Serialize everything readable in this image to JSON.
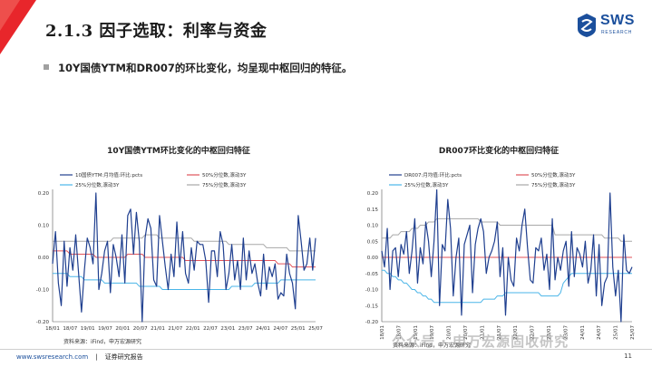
{
  "header": {
    "title": "2.1.3 因子选取：利率与资金",
    "logo_text": "SWS",
    "logo_sub": "RESEARCH",
    "accent": "#e8262b",
    "brand_color": "#1b4f9c"
  },
  "bullet": "10Y国债YTM和DR007的环比变化，均呈现中枢回归的特征。",
  "chart_data": [
    {
      "type": "line",
      "title": "10Y国债YTM环比变化的中枢回归特征",
      "x_ticks": [
        "18/01",
        "18/07",
        "19/01",
        "19/07",
        "20/01",
        "20/07",
        "21/01",
        "21/07",
        "22/01",
        "22/07",
        "23/01",
        "23/07",
        "24/01",
        "24/07",
        "25/01",
        "25/07"
      ],
      "x_range": [
        0,
        91
      ],
      "ylim": [
        -0.2,
        0.2
      ],
      "y_ticks": [
        "0.20",
        "0.10",
        "0.00",
        "-0.10",
        "-0.20"
      ],
      "series": [
        {
          "name": "10国债YTM:月均值:环比:pcts",
          "color": "#1f3f8f",
          "width": 1.2,
          "values": [
            -0.02,
            0.08,
            -0.08,
            -0.15,
            0.05,
            -0.09,
            0.03,
            -0.04,
            0.07,
            -0.05,
            -0.17,
            -0.04,
            0.06,
            0.03,
            -0.02,
            0.2,
            -0.1,
            -0.05,
            0.02,
            0.05,
            -0.11,
            0.04,
            0.0,
            -0.06,
            0.07,
            -0.08,
            0.13,
            0.15,
            0.01,
            0.14,
            0.05,
            -0.2,
            0.06,
            0.12,
            0.09,
            -0.07,
            -0.09,
            0.13,
            0.05,
            -0.03,
            -0.1,
            0.01,
            -0.06,
            0.11,
            -0.03,
            0.08,
            -0.05,
            -0.08,
            0.03,
            -0.04,
            0.05,
            0.04,
            0.04,
            -0.01,
            -0.14,
            0.02,
            0.02,
            -0.06,
            0.08,
            0.04,
            -0.1,
            -0.05,
            0.04,
            -0.07,
            -0.01,
            -0.1,
            0.06,
            -0.07,
            0.02,
            -0.05,
            -0.02,
            -0.08,
            -0.12,
            0.01,
            -0.1,
            -0.03,
            -0.06,
            -0.02,
            -0.13,
            -0.11,
            -0.12,
            0.01,
            -0.05,
            -0.08,
            -0.16,
            0.13,
            0.05,
            -0.04,
            -0.02,
            0.06,
            -0.04,
            0.06
          ]
        },
        {
          "name": "50%分位数,滚动3Y",
          "color": "#e0525a",
          "width": 1.0,
          "values": [
            0.02,
            0.02,
            0.02,
            0.02,
            0.02,
            0.02,
            0.01,
            0.01,
            0.01,
            0.01,
            0.01,
            0.01,
            0.01,
            0.01,
            0.01,
            0.0,
            0.0,
            0.0,
            0.0,
            0.0,
            0.0,
            0.0,
            0.0,
            0.0,
            0.0,
            0.0,
            0.01,
            0.01,
            0.01,
            0.01,
            0.01,
            0.01,
            0.0,
            0.0,
            0.0,
            0.0,
            0.0,
            0.0,
            0.0,
            0.0,
            0.0,
            0.0,
            0.0,
            0.0,
            0.0,
            0.0,
            -0.01,
            -0.01,
            -0.01,
            -0.01,
            -0.01,
            -0.01,
            -0.01,
            -0.01,
            -0.01,
            -0.01,
            -0.01,
            -0.01,
            -0.01,
            -0.01,
            -0.01,
            -0.01,
            -0.01,
            -0.01,
            -0.01,
            -0.01,
            -0.01,
            -0.01,
            -0.01,
            -0.01,
            -0.01,
            -0.01,
            -0.01,
            -0.01,
            -0.01,
            -0.01,
            -0.01,
            -0.01,
            -0.02,
            -0.02,
            -0.02,
            -0.02,
            -0.02,
            -0.03,
            -0.03,
            -0.03,
            -0.03,
            -0.03,
            -0.03,
            -0.03,
            -0.03,
            -0.03
          ]
        },
        {
          "name": "25%分位数,滚动3Y",
          "color": "#4ab5e8",
          "width": 1.0,
          "values": [
            -0.05,
            -0.05,
            -0.05,
            -0.05,
            -0.05,
            -0.05,
            -0.06,
            -0.06,
            -0.06,
            -0.06,
            -0.06,
            -0.07,
            -0.07,
            -0.07,
            -0.07,
            -0.07,
            -0.07,
            -0.07,
            -0.08,
            -0.08,
            -0.08,
            -0.08,
            -0.08,
            -0.08,
            -0.08,
            -0.08,
            -0.08,
            -0.08,
            -0.08,
            -0.08,
            -0.09,
            -0.09,
            -0.09,
            -0.09,
            -0.09,
            -0.09,
            -0.09,
            -0.09,
            -0.1,
            -0.1,
            -0.1,
            -0.1,
            -0.1,
            -0.1,
            -0.1,
            -0.1,
            -0.1,
            -0.1,
            -0.1,
            -0.1,
            -0.1,
            -0.1,
            -0.1,
            -0.1,
            -0.1,
            -0.1,
            -0.1,
            -0.1,
            -0.1,
            -0.1,
            -0.1,
            -0.1,
            -0.09,
            -0.09,
            -0.09,
            -0.09,
            -0.09,
            -0.09,
            -0.09,
            -0.09,
            -0.08,
            -0.08,
            -0.08,
            -0.08,
            -0.08,
            -0.08,
            -0.08,
            -0.08,
            -0.08,
            -0.07,
            -0.07,
            -0.07,
            -0.07,
            -0.07,
            -0.07,
            -0.07,
            -0.07,
            -0.07,
            -0.07,
            -0.07,
            -0.07,
            -0.07
          ]
        },
        {
          "name": "75%分位数,滚动3Y",
          "color": "#a8a8a8",
          "width": 1.0,
          "values": [
            0.05,
            0.05,
            0.05,
            0.05,
            0.05,
            0.05,
            0.05,
            0.05,
            0.05,
            0.05,
            0.05,
            0.05,
            0.05,
            0.05,
            0.05,
            0.05,
            0.05,
            0.05,
            0.05,
            0.05,
            0.05,
            0.06,
            0.06,
            0.06,
            0.06,
            0.06,
            0.06,
            0.06,
            0.06,
            0.06,
            0.06,
            0.06,
            0.07,
            0.07,
            0.07,
            0.07,
            0.07,
            0.06,
            0.06,
            0.06,
            0.06,
            0.06,
            0.06,
            0.06,
            0.06,
            0.06,
            0.06,
            0.06,
            0.06,
            0.05,
            0.05,
            0.05,
            0.05,
            0.05,
            0.05,
            0.05,
            0.05,
            0.05,
            0.05,
            0.05,
            0.05,
            0.04,
            0.04,
            0.04,
            0.04,
            0.04,
            0.04,
            0.04,
            0.04,
            0.04,
            0.04,
            0.04,
            0.04,
            0.04,
            0.03,
            0.03,
            0.03,
            0.03,
            0.03,
            0.03,
            0.03,
            0.03,
            0.02,
            0.02,
            0.02,
            0.02,
            0.02,
            0.02,
            0.02,
            0.02,
            0.02,
            0.02
          ]
        }
      ],
      "source": "资料来源：iFind，申万宏源研究"
    },
    {
      "type": "line",
      "title": "DR007环比变化的中枢回归特征",
      "x_ticks": [
        "18/01",
        "18/07",
        "19/01",
        "19/07",
        "20/01",
        "20/07",
        "21/01",
        "21/07",
        "22/01",
        "22/07",
        "23/01",
        "23/07",
        "24/01",
        "24/07",
        "25/01",
        "25/07"
      ],
      "x_range": [
        0,
        91
      ],
      "ylim": [
        -0.2,
        0.2
      ],
      "y_ticks": [
        "0.20",
        "0.15",
        "0.10",
        "0.05",
        "0.00",
        "-0.05",
        "-0.10",
        "-0.15",
        "-0.20"
      ],
      "series": [
        {
          "name": "DR007:月均值:环比:pcts",
          "color": "#1f3f8f",
          "width": 1.2,
          "values": [
            0.02,
            -0.03,
            0.09,
            -0.1,
            0.02,
            0.03,
            -0.06,
            0.04,
            0.01,
            0.08,
            -0.05,
            0.02,
            0.12,
            -0.08,
            0.03,
            -0.02,
            0.11,
            0.05,
            -0.06,
            0.05,
            0.21,
            -0.15,
            0.04,
            0.02,
            0.18,
            0.09,
            -0.12,
            0.0,
            0.06,
            -0.18,
            0.04,
            0.07,
            0.1,
            -0.11,
            0.04,
            0.09,
            0.12,
            0.08,
            -0.05,
            0.0,
            0.02,
            0.05,
            0.11,
            -0.06,
            0.03,
            -0.18,
            0.0,
            -0.07,
            -0.09,
            0.06,
            0.02,
            0.1,
            0.15,
            0.03,
            -0.07,
            -0.08,
            0.03,
            0.02,
            0.06,
            -0.04,
            0.01,
            -0.1,
            0.12,
            -0.07,
            0.0,
            -0.04,
            0.02,
            0.05,
            -0.09,
            0.08,
            -0.06,
            0.03,
            0.01,
            -0.03,
            0.05,
            -0.08,
            -0.04,
            0.07,
            -0.12,
            0.04,
            -0.15,
            -0.08,
            -0.06,
            0.2,
            -0.03,
            -0.12,
            -0.04,
            -0.2,
            0.07,
            -0.04,
            -0.05,
            -0.03
          ]
        },
        {
          "name": "50%分位数,滚动3Y",
          "color": "#e0525a",
          "width": 1.0,
          "values": [
            0.0,
            0.0,
            0.0,
            0.0,
            0.0,
            0.0,
            0.0,
            0.0,
            0.0,
            0.0,
            0.0,
            0.0,
            0.0,
            0.0,
            0.0,
            0.0,
            0.0,
            0.0,
            0.0,
            0.0,
            0.0,
            0.0,
            0.0,
            0.0,
            0.0,
            0.0,
            0.0,
            0.0,
            0.0,
            0.0,
            0.0,
            0.0,
            0.0,
            0.0,
            0.0,
            0.0,
            0.0,
            0.0,
            0.0,
            0.0,
            0.0,
            0.0,
            0.0,
            0.0,
            0.0,
            0.0,
            0.0,
            0.0,
            0.0,
            0.0,
            0.0,
            0.0,
            0.0,
            0.0,
            0.0,
            0.0,
            0.0,
            0.0,
            0.0,
            0.0,
            0.0,
            0.0,
            0.0,
            0.0,
            0.0,
            0.0,
            0.0,
            0.0,
            0.0,
            0.0,
            0.0,
            0.0,
            0.0,
            0.0,
            0.0,
            0.0,
            0.0,
            0.0,
            0.0,
            0.0,
            0.0,
            0.0,
            0.0,
            0.0,
            0.0,
            0.0,
            0.0,
            0.0,
            0.0,
            0.0,
            0.0,
            0.0
          ]
        },
        {
          "name": "25%分位数,滚动3Y",
          "color": "#4ab5e8",
          "width": 1.0,
          "values": [
            -0.04,
            -0.04,
            -0.05,
            -0.05,
            -0.06,
            -0.06,
            -0.07,
            -0.07,
            -0.08,
            -0.08,
            -0.09,
            -0.1,
            -0.1,
            -0.11,
            -0.11,
            -0.12,
            -0.12,
            -0.13,
            -0.13,
            -0.14,
            -0.14,
            -0.14,
            -0.14,
            -0.14,
            -0.14,
            -0.14,
            -0.14,
            -0.14,
            -0.14,
            -0.14,
            -0.14,
            -0.14,
            -0.14,
            -0.14,
            -0.14,
            -0.14,
            -0.14,
            -0.13,
            -0.13,
            -0.13,
            -0.13,
            -0.13,
            -0.12,
            -0.12,
            -0.12,
            -0.11,
            -0.11,
            -0.11,
            -0.11,
            -0.11,
            -0.11,
            -0.11,
            -0.11,
            -0.11,
            -0.11,
            -0.11,
            -0.11,
            -0.11,
            -0.12,
            -0.12,
            -0.12,
            -0.12,
            -0.12,
            -0.12,
            -0.12,
            -0.11,
            -0.08,
            -0.07,
            -0.06,
            -0.05,
            -0.05,
            -0.05,
            -0.05,
            -0.05,
            -0.05,
            -0.05,
            -0.05,
            -0.05,
            -0.05,
            -0.05,
            -0.05,
            -0.05,
            -0.05,
            -0.05,
            -0.05,
            -0.05,
            -0.05,
            -0.05,
            -0.05,
            -0.05,
            -0.05,
            -0.05
          ]
        },
        {
          "name": "75%分位数,滚动3Y",
          "color": "#a8a8a8",
          "width": 1.0,
          "values": [
            0.06,
            0.06,
            0.06,
            0.06,
            0.07,
            0.07,
            0.07,
            0.08,
            0.08,
            0.08,
            0.08,
            0.09,
            0.09,
            0.09,
            0.1,
            0.1,
            0.1,
            0.11,
            0.11,
            0.11,
            0.12,
            0.12,
            0.12,
            0.12,
            0.12,
            0.12,
            0.12,
            0.12,
            0.12,
            0.12,
            0.12,
            0.12,
            0.12,
            0.12,
            0.12,
            0.12,
            0.11,
            0.11,
            0.11,
            0.11,
            0.11,
            0.11,
            0.11,
            0.1,
            0.1,
            0.1,
            0.1,
            0.1,
            0.1,
            0.1,
            0.1,
            0.1,
            0.1,
            0.1,
            0.1,
            0.1,
            0.1,
            0.1,
            0.1,
            0.1,
            0.1,
            0.1,
            0.1,
            0.07,
            0.07,
            0.07,
            0.07,
            0.07,
            0.07,
            0.07,
            0.07,
            0.07,
            0.07,
            0.07,
            0.07,
            0.07,
            0.07,
            0.07,
            0.07,
            0.07,
            0.07,
            0.06,
            0.06,
            0.06,
            0.06,
            0.06,
            0.06,
            0.05,
            0.05,
            0.05,
            0.05,
            0.05
          ]
        }
      ],
      "source": "资料来源：iFind，申万宏源研究"
    }
  ],
  "footer": {
    "url": "www.swsresearch.com",
    "label": "证券研究报告",
    "page": "11",
    "watermark": "公众号 · 申万宏源固收研究"
  }
}
